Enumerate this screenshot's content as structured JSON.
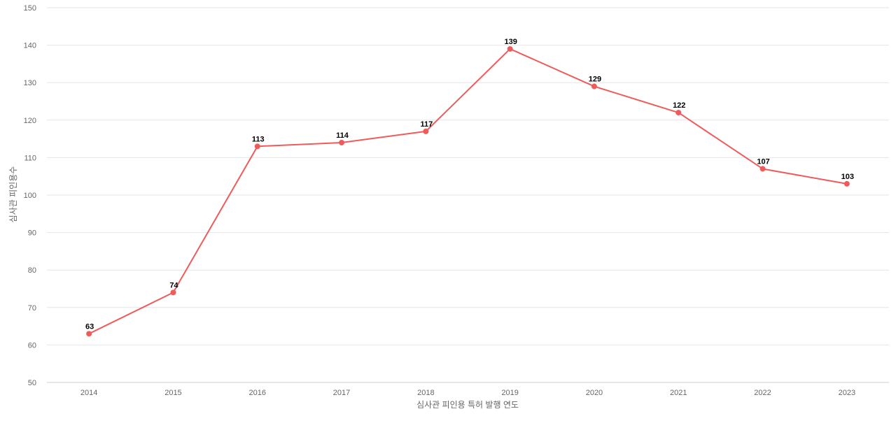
{
  "chart_data": {
    "type": "line",
    "xlabel": "심사관 피인용 특허 발행 연도",
    "ylabel": "심사관 피인용수",
    "categories": [
      "2014",
      "2015",
      "2016",
      "2017",
      "2018",
      "2019",
      "2020",
      "2021",
      "2022",
      "2023"
    ],
    "series": [
      {
        "values": [
          63,
          74,
          113,
          114,
          117,
          139,
          129,
          122,
          107,
          103
        ]
      }
    ],
    "ylim": [
      50,
      150
    ],
    "yticks": [
      50,
      60,
      70,
      80,
      90,
      100,
      110,
      120,
      130,
      140,
      150
    ],
    "grid": true,
    "data_labels": true,
    "colors": {
      "line": "#ef5b5b",
      "grid": "#e6e6e6",
      "text": "#666666"
    }
  }
}
